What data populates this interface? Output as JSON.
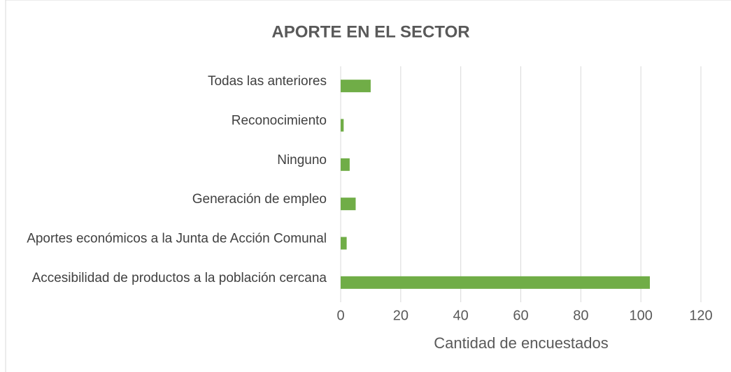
{
  "chart_data": {
    "type": "bar",
    "orientation": "horizontal",
    "title": "APORTE EN EL SECTOR",
    "x_label": "Cantidad de encuestados",
    "categories": [
      "Todas las anteriores",
      "Reconocimiento",
      "Ninguno",
      "Generación de empleo",
      "Aportes económicos a la Junta de Acción Comunal",
      "Accesibilidad de productos a la población cercana"
    ],
    "values": [
      10,
      1,
      3,
      5,
      2,
      103
    ],
    "color": "#70ad47",
    "xlim": [
      0,
      120
    ],
    "xticks": [
      0,
      20,
      40,
      60,
      80,
      100,
      120
    ],
    "grid": true
  }
}
